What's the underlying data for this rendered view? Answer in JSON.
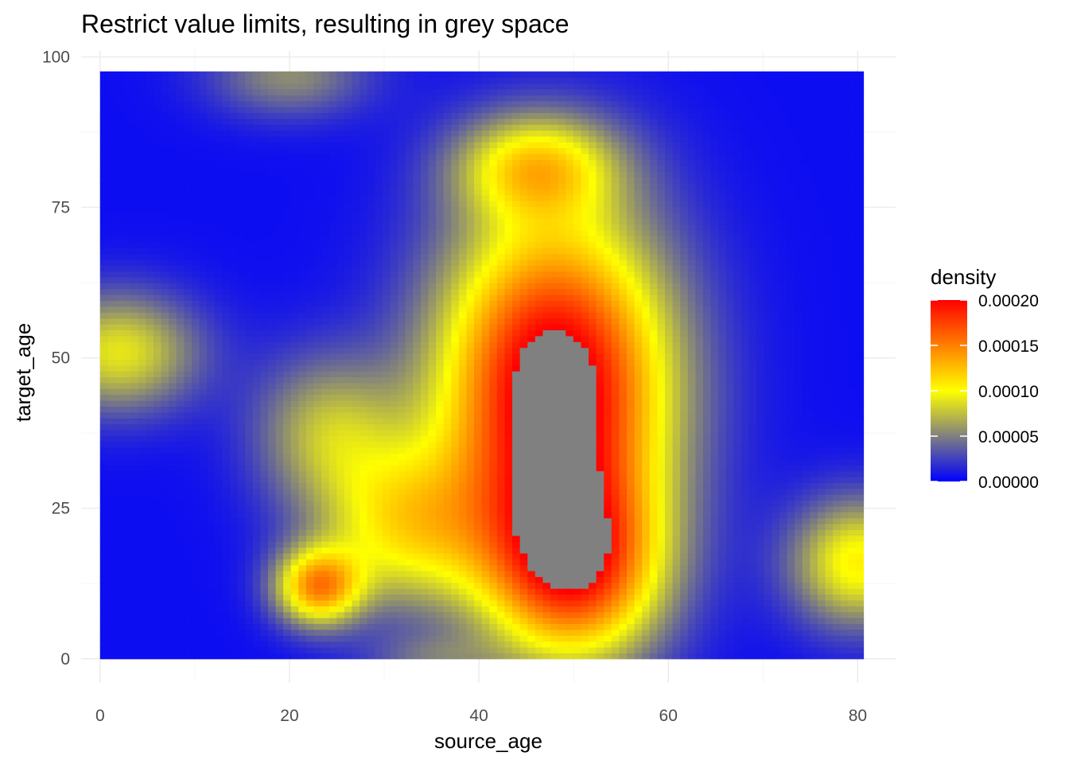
{
  "chart_data": {
    "type": "heatmap",
    "title": "Restrict value limits, resulting in grey space",
    "xlabel": "source_age",
    "ylabel": "target_age",
    "xlim": [
      -2,
      84
    ],
    "ylim": [
      -4,
      101
    ],
    "data_extent": {
      "x": [
        0,
        80.6
      ],
      "y": [
        0,
        97.6
      ]
    },
    "x_ticks": [
      0,
      20,
      40,
      60,
      80
    ],
    "y_ticks": [
      0,
      25,
      50,
      75,
      100
    ],
    "grid": true,
    "legend": {
      "title": "density",
      "position": "right",
      "limits": [
        0,
        0.0002
      ],
      "breaks": [
        0,
        5e-05,
        0.0001,
        0.00015,
        0.0002
      ],
      "labels": [
        "0.00000",
        "0.00005",
        "0.00010",
        "0.00015",
        "0.00020"
      ],
      "gradient_colors": [
        "#0000ff",
        "#ffff00",
        "#ff0000"
      ],
      "na_color": "#808080"
    },
    "density_components": [
      {
        "x": 48,
        "y": 45,
        "sx": 8.5,
        "sy": 20,
        "w": 0.00022
      },
      {
        "x": 50,
        "y": 15,
        "sx": 6.5,
        "sy": 11,
        "w": 0.00015
      },
      {
        "x": 23,
        "y": 12,
        "sx": 3.2,
        "sy": 4.5,
        "w": 0.00013
      },
      {
        "x": 32,
        "y": 22,
        "sx": 6.5,
        "sy": 9.5,
        "w": 9e-05
      },
      {
        "x": 24,
        "y": 38,
        "sx": 5.5,
        "sy": 9,
        "w": 6.5e-05
      },
      {
        "x": 46,
        "y": 82,
        "sx": 6,
        "sy": 6,
        "w": 9e-05
      },
      {
        "x": 2,
        "y": 51,
        "sx": 6,
        "sy": 7,
        "w": 8.5e-05
      },
      {
        "x": 80,
        "y": 16,
        "sx": 5,
        "sy": 7.5,
        "w": 0.0001
      },
      {
        "x": 20,
        "y": 97,
        "sx": 6,
        "sy": 5,
        "w": 5e-05
      },
      {
        "x": 35,
        "y": 0,
        "sx": 5,
        "sy": 3,
        "w": 3e-05
      }
    ],
    "grey_region_note": "density above 0.00020 rendered as grey (na_color)"
  }
}
